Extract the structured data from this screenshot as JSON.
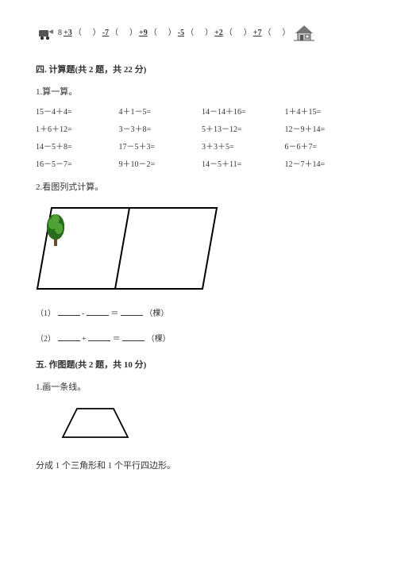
{
  "chain": {
    "ops": [
      "+3",
      "-7",
      "+9",
      "-5",
      "+2",
      "+7"
    ],
    "start": "8",
    "paren_l": "（",
    "paren_r": "）"
  },
  "section4": {
    "title": "四. 计算题(共 2 题，共 22 分)",
    "q1_label": "1.算一算。",
    "grid": [
      "15－4＋4=",
      "4＋1－5=",
      "14－14＋16=",
      "1＋4＋15=",
      "1＋6＋12=",
      "3－3＋8=",
      "5＋13－12=",
      "12－9＋14=",
      "14－5＋8=",
      "17－5＋3=",
      "3＋3＋5=",
      "6－6＋7=",
      "16－5－7=",
      "9＋10－2=",
      "14－5＋11=",
      "12－7＋14="
    ],
    "q2_label": "2.看图列式计算。",
    "fill1_prefix": "（1）",
    "fill2_prefix": "（2）",
    "minus": "-",
    "plus": "+",
    "equals": "＝",
    "unit": "（棵）"
  },
  "section5": {
    "title": "五. 作图题(共 2 题，共 10 分)",
    "q1_label": "1.画一条线。",
    "desc": "分成 1 个三角形和 1 个平行四边形。"
  },
  "colors": {
    "text": "#333333",
    "tree_trunk": "#6b4a2b",
    "tree_foliage_dark": "#2a6b1f",
    "tree_foliage_light": "#4fa334",
    "frame": "#000000"
  }
}
